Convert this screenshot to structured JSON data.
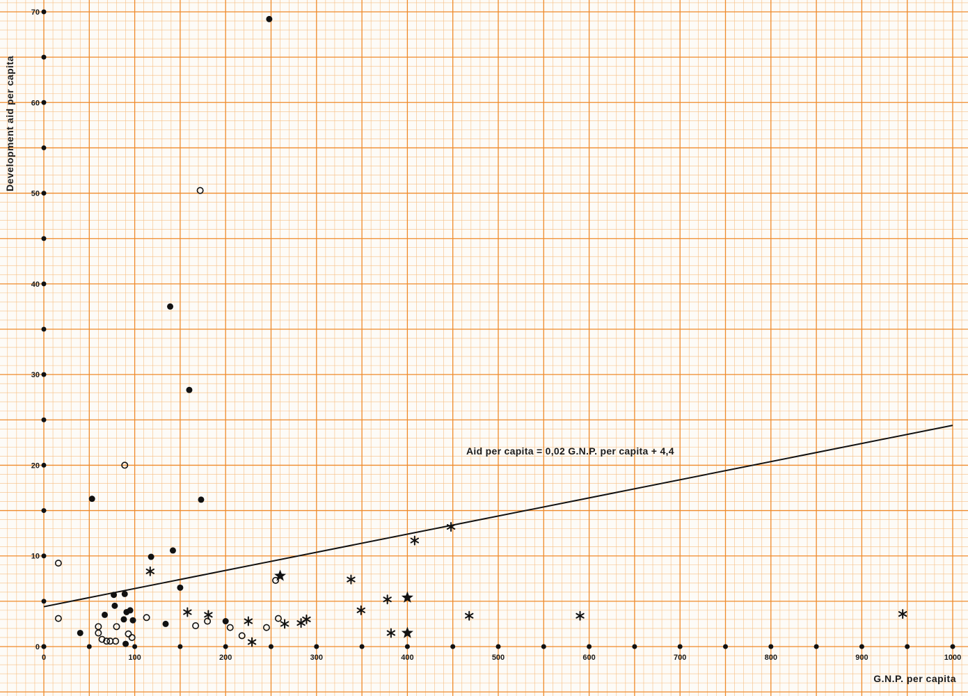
{
  "chart_data": {
    "type": "scatter",
    "title": "",
    "xlabel": "G.N.P. per capita",
    "ylabel": "Development aid per capita",
    "xlim": [
      0,
      1000
    ],
    "ylim": [
      0,
      70
    ],
    "x_ticks": [
      0,
      100,
      200,
      300,
      400,
      500,
      600,
      700,
      800,
      900,
      1000
    ],
    "x_tick_labels": [
      "0",
      "100",
      "200",
      "300",
      "400",
      "500",
      "600",
      "700",
      "800",
      "900",
      "1000"
    ],
    "y_ticks": [
      0,
      10,
      20,
      30,
      40,
      50,
      60,
      70
    ],
    "y_tick_labels": [
      "0",
      "10",
      "20",
      "30",
      "40",
      "50",
      "60",
      "70"
    ],
    "grid": true,
    "grid_color": "#ef8a2a",
    "grid_minor_color": "#f6be82",
    "ink_color": "#111111",
    "regression_line": {
      "label": "Aid per capita = 0,02 G.N.P. per capita + 4,4",
      "slope": 0.02,
      "intercept": 4.4,
      "x_range": [
        0,
        1000
      ]
    },
    "series": [
      {
        "marker": "filled-circle",
        "points": [
          [
            40,
            1.5
          ],
          [
            53,
            16.3
          ],
          [
            67,
            3.5
          ],
          [
            77,
            5.7
          ],
          [
            78,
            4.5
          ],
          [
            88,
            3.0
          ],
          [
            89,
            5.8
          ],
          [
            90,
            0.3
          ],
          [
            91,
            3.8
          ],
          [
            95,
            4.0
          ],
          [
            98,
            2.9
          ],
          [
            118,
            9.9
          ],
          [
            134,
            2.5
          ],
          [
            139,
            37.5
          ],
          [
            142,
            10.6
          ],
          [
            150,
            6.5
          ],
          [
            160,
            28.3
          ],
          [
            173,
            16.2
          ],
          [
            200,
            2.8
          ],
          [
            248,
            69.2
          ]
        ]
      },
      {
        "marker": "open-circle",
        "points": [
          [
            16,
            9.2
          ],
          [
            16,
            3.1
          ],
          [
            60,
            2.2
          ],
          [
            60,
            1.5
          ],
          [
            64,
            0.8
          ],
          [
            69,
            0.6
          ],
          [
            73,
            0.6
          ],
          [
            79,
            0.6
          ],
          [
            80,
            2.2
          ],
          [
            89,
            20.0
          ],
          [
            93,
            1.4
          ],
          [
            97,
            1.0
          ],
          [
            113,
            3.2
          ],
          [
            167,
            2.3
          ],
          [
            172,
            50.3
          ],
          [
            180,
            2.8
          ],
          [
            205,
            2.1
          ],
          [
            218,
            1.2
          ],
          [
            245,
            2.1
          ],
          [
            255,
            7.3
          ],
          [
            258,
            3.1
          ]
        ]
      },
      {
        "marker": "asterisk",
        "points": [
          [
            117,
            8.3
          ],
          [
            158,
            3.8
          ],
          [
            181,
            3.5
          ],
          [
            225,
            2.8
          ],
          [
            229,
            0.5
          ],
          [
            265,
            2.5
          ],
          [
            283,
            2.6
          ],
          [
            289,
            3.0
          ],
          [
            338,
            7.4
          ],
          [
            349,
            4.0
          ],
          [
            378,
            5.2
          ],
          [
            382,
            1.5
          ],
          [
            408,
            11.7
          ],
          [
            448,
            13.2
          ],
          [
            468,
            3.4
          ],
          [
            590,
            3.4
          ],
          [
            945,
            3.6
          ]
        ]
      },
      {
        "marker": "filled-star",
        "points": [
          [
            260,
            7.8
          ],
          [
            400,
            5.4
          ],
          [
            400,
            1.5
          ]
        ]
      }
    ]
  }
}
